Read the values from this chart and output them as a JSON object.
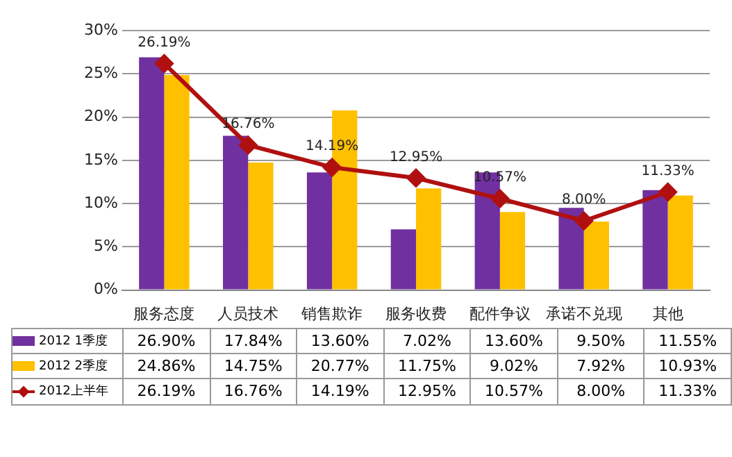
{
  "chart_data": {
    "type": "bar",
    "categories": [
      "服务态度",
      "人员技术",
      "销售欺诈",
      "服务收费",
      "配件争议",
      "承诺不兑现",
      "其他"
    ],
    "series": [
      {
        "name": "2012 1季度",
        "color": "#7030a0",
        "values": [
          26.9,
          17.84,
          13.6,
          7.02,
          13.6,
          9.5,
          11.55
        ],
        "value_labels": [
          "26.90%",
          "17.84%",
          "13.60%",
          "7.02%",
          "13.60%",
          "9.50%",
          "11.55%"
        ]
      },
      {
        "name": "2012 2季度",
        "color": "#ffc000",
        "values": [
          24.86,
          14.75,
          20.77,
          11.75,
          9.02,
          7.92,
          10.93
        ],
        "value_labels": [
          "24.86%",
          "14.75%",
          "20.77%",
          "11.75%",
          "9.02%",
          "7.92%",
          "10.93%"
        ]
      },
      {
        "name": "2012上半年",
        "type": "line",
        "color": "#b01010",
        "marker": "diamond",
        "values": [
          26.19,
          16.76,
          14.19,
          12.95,
          10.57,
          8.0,
          11.33
        ],
        "value_labels": [
          "26.19%",
          "16.76%",
          "14.19%",
          "12.95%",
          "10.57%",
          "8.00%",
          "11.33%"
        ]
      }
    ],
    "ylim": [
      0,
      30
    ],
    "yticks": [
      {
        "value": 0,
        "label": "0%"
      },
      {
        "value": 5,
        "label": "5%"
      },
      {
        "value": 10,
        "label": "10%"
      },
      {
        "value": 15,
        "label": "15%"
      },
      {
        "value": 20,
        "label": "20%"
      },
      {
        "value": 25,
        "label": "25%"
      },
      {
        "value": 30,
        "label": "30%"
      }
    ],
    "grid": "y",
    "legend": "bottom"
  }
}
